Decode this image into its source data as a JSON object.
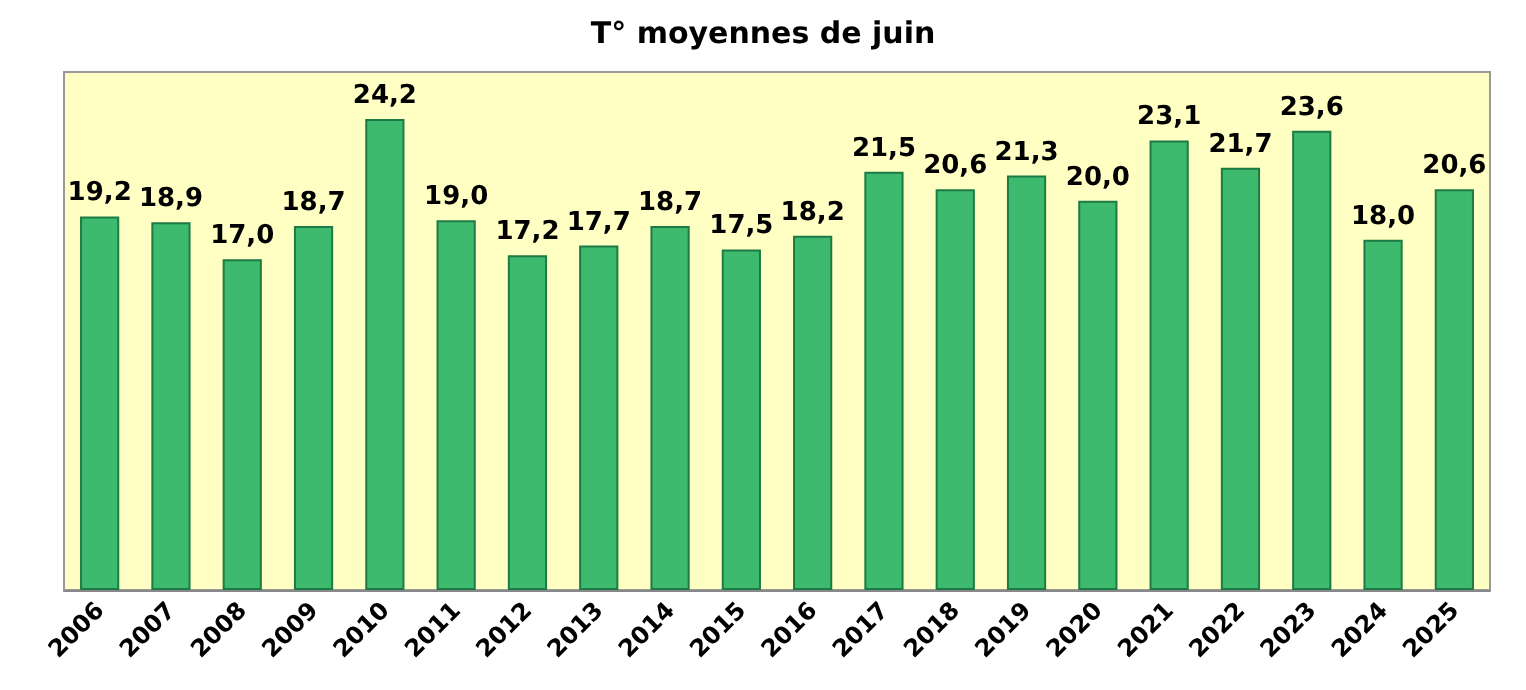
{
  "chart_data": {
    "type": "bar",
    "title": "T° moyennes de juin",
    "categories": [
      "2006",
      "2007",
      "2008",
      "2009",
      "2010",
      "2011",
      "2012",
      "2013",
      "2014",
      "2015",
      "2016",
      "2017",
      "2018",
      "2019",
      "2020",
      "2021",
      "2022",
      "2023",
      "2024",
      "2025"
    ],
    "values": [
      19.2,
      18.9,
      17.0,
      18.7,
      24.2,
      19.0,
      17.2,
      17.7,
      18.7,
      17.5,
      18.2,
      21.5,
      20.6,
      21.3,
      20.0,
      23.1,
      21.7,
      23.6,
      18.0,
      20.6
    ],
    "value_labels": [
      "19,2",
      "18,9",
      "17,0",
      "18,7",
      "24,2",
      "19,0",
      "17,2",
      "17,7",
      "18,7",
      "17,5",
      "18,2",
      "21,5",
      "20,6",
      "21,3",
      "20,0",
      "23,1",
      "21,7",
      "23,6",
      "18,0",
      "20,6"
    ],
    "color": "#3dba6e",
    "tick_labels": "x"
  }
}
